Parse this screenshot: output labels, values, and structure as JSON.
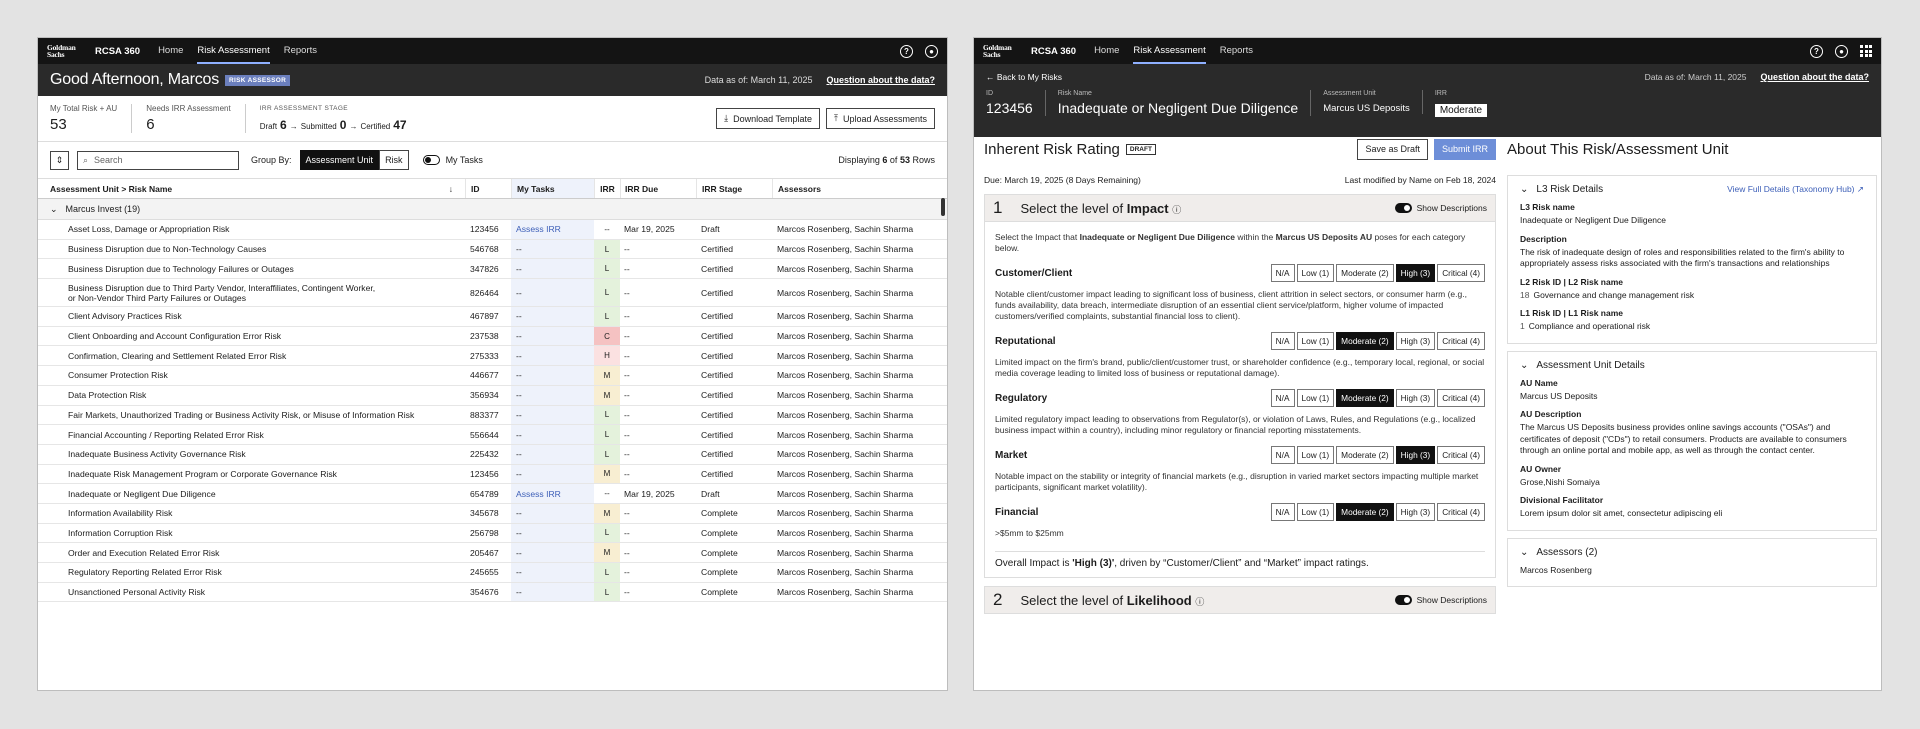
{
  "common": {
    "logo_line1": "Goldman",
    "logo_line2": "Sachs",
    "app_name": "RCSA 360",
    "nav": [
      "Home",
      "Risk Assessment",
      "Reports"
    ],
    "data_as_of": "Data as of: March 11, 2025",
    "question_link": "Question about the data?"
  },
  "dashboard": {
    "greeting": "Good Afternoon, Marcos",
    "role_badge": "RISK ASSESSOR",
    "stats": [
      {
        "label": "My Total Risk + AU",
        "value": "53"
      },
      {
        "label": "Needs IRR Assessment",
        "value": "6"
      }
    ],
    "stage": {
      "label": "IRR ASSESSMENT STAGE",
      "draft_label": "Draft",
      "draft": "6",
      "submitted_label": "Submitted",
      "submitted": "0",
      "certified_label": "Certified",
      "certified": "47"
    },
    "download_btn": "Download Template",
    "upload_btn": "Upload Assessments",
    "search_placeholder": "Search",
    "group_by_label": "Group By:",
    "group_by_options": [
      "Assessment Unit",
      "Risk"
    ],
    "my_tasks_label": "My Tasks",
    "displaying_prefix": "Displaying",
    "displaying_count": "6",
    "displaying_mid": "of",
    "displaying_total": "53",
    "displaying_suffix": "Rows",
    "columns": [
      "Assessment Unit > Risk Name",
      "ID",
      "My Tasks",
      "IRR",
      "IRR Due",
      "IRR Stage",
      "Assessors"
    ],
    "group_name": "Marcus Invest (19)",
    "rows": [
      {
        "name": "Asset Loss, Damage or Appropriation Risk",
        "id": "123456",
        "task": "Assess IRR",
        "irr": "--",
        "due": "Mar 19, 2025",
        "stage": "Draft",
        "assessors": "Marcos Rosenberg, Sachin Sharma"
      },
      {
        "name": "Business Disruption due to Non-Technology Causes",
        "id": "546768",
        "task": "--",
        "irr": "L",
        "due": "--",
        "stage": "Certified",
        "assessors": "Marcos Rosenberg, Sachin Sharma"
      },
      {
        "name": "Business Disruption due to Technology Failures or Outages",
        "id": "347826",
        "task": "--",
        "irr": "L",
        "due": "--",
        "stage": "Certified",
        "assessors": "Marcos Rosenberg, Sachin Sharma"
      },
      {
        "name": "Business Disruption due to Third Party Vendor, Interaffiliates, Contingent Worker,",
        "name2": "or Non-Vendor Third Party Failures or Outages",
        "id": "826464",
        "task": "--",
        "irr": "L",
        "due": "--",
        "stage": "Certified",
        "assessors": "Marcos Rosenberg, Sachin Sharma"
      },
      {
        "name": "Client Advisory Practices Risk",
        "id": "467897",
        "task": "--",
        "irr": "L",
        "due": "--",
        "stage": "Certified",
        "assessors": "Marcos Rosenberg, Sachin Sharma"
      },
      {
        "name": "Client Onboarding and Account Configuration Error Risk",
        "id": "237538",
        "task": "--",
        "irr": "C",
        "due": "--",
        "stage": "Certified",
        "assessors": "Marcos Rosenberg, Sachin Sharma"
      },
      {
        "name": "Confirmation, Clearing and Settlement Related Error Risk",
        "id": "275333",
        "task": "--",
        "irr": "H",
        "due": "--",
        "stage": "Certified",
        "assessors": "Marcos Rosenberg, Sachin Sharma"
      },
      {
        "name": "Consumer Protection Risk",
        "id": "446677",
        "task": "--",
        "irr": "M",
        "due": "--",
        "stage": "Certified",
        "assessors": "Marcos Rosenberg, Sachin Sharma"
      },
      {
        "name": "Data Protection Risk",
        "id": "356934",
        "task": "--",
        "irr": "M",
        "due": "--",
        "stage": "Certified",
        "assessors": "Marcos Rosenberg, Sachin Sharma"
      },
      {
        "name": "Fair Markets, Unauthorized Trading or Business Activity Risk, or Misuse of Information Risk",
        "id": "883377",
        "task": "--",
        "irr": "L",
        "due": "--",
        "stage": "Certified",
        "assessors": "Marcos Rosenberg, Sachin Sharma"
      },
      {
        "name": "Financial Accounting / Reporting Related Error Risk",
        "id": "556644",
        "task": "--",
        "irr": "L",
        "due": "--",
        "stage": "Certified",
        "assessors": "Marcos Rosenberg, Sachin Sharma"
      },
      {
        "name": "Inadequate Business Activity Governance Risk",
        "id": "225432",
        "task": "--",
        "irr": "L",
        "due": "--",
        "stage": "Certified",
        "assessors": "Marcos Rosenberg, Sachin Sharma"
      },
      {
        "name": "Inadequate Risk Management Program or Corporate Governance Risk",
        "id": "123456",
        "task": "--",
        "irr": "M",
        "due": "--",
        "stage": "Certified",
        "assessors": "Marcos Rosenberg, Sachin Sharma"
      },
      {
        "name": "Inadequate or Negligent Due Diligence",
        "id": "654789",
        "task": "Assess IRR",
        "irr": "--",
        "due": "Mar 19, 2025",
        "stage": "Draft",
        "assessors": "Marcos Rosenberg, Sachin Sharma"
      },
      {
        "name": "Information Availability Risk",
        "id": "345678",
        "task": "--",
        "irr": "M",
        "due": "--",
        "stage": "Complete",
        "assessors": "Marcos Rosenberg, Sachin Sharma"
      },
      {
        "name": "Information Corruption Risk",
        "id": "256798",
        "task": "--",
        "irr": "L",
        "due": "--",
        "stage": "Complete",
        "assessors": "Marcos Rosenberg, Sachin Sharma"
      },
      {
        "name": "Order and Execution Related Error Risk",
        "id": "205467",
        "task": "--",
        "irr": "M",
        "due": "--",
        "stage": "Complete",
        "assessors": "Marcos Rosenberg, Sachin Sharma"
      },
      {
        "name": "Regulatory Reporting Related Error Risk",
        "id": "245655",
        "task": "--",
        "irr": "L",
        "due": "--",
        "stage": "Complete",
        "assessors": "Marcos Rosenberg, Sachin Sharma"
      },
      {
        "name": "Unsanctioned Personal Activity Risk",
        "id": "354676",
        "task": "--",
        "irr": "L",
        "due": "--",
        "stage": "Complete",
        "assessors": "Marcos Rosenberg, Sachin Sharma"
      }
    ]
  },
  "detail": {
    "back_label": "Back to My Risks",
    "meta": {
      "id_label": "ID",
      "id": "123456",
      "risk_label": "Risk Name",
      "risk": "Inadequate or Negligent Due Diligence",
      "au_label": "Assessment Unit",
      "au": "Marcus US Deposits",
      "irr_label": "IRR",
      "irr": "Moderate"
    },
    "title": "Inherent Risk Rating",
    "draft_badge": "DRAFT",
    "save_btn": "Save as Draft",
    "submit_btn": "Submit IRR",
    "due": "Due: March 19, 2025 (8 Days Remaining)",
    "modified": "Last modified by Name on Feb 18, 2024",
    "step1": {
      "num": "1",
      "prefix": "Select the level of",
      "bold": "Impact"
    },
    "show_desc": "Show Descriptions",
    "intro_a": "Select the Impact that",
    "intro_b": "Inadequate or Negligent Due Diligence",
    "intro_c": "within the",
    "intro_d": "Marcus US Deposits AU",
    "intro_e": "poses for each category below.",
    "options": [
      "N/A",
      "Low (1)",
      "Moderate (2)",
      "High (3)",
      "Critical (4)"
    ],
    "categories": [
      {
        "name": "Customer/Client",
        "selected": 3,
        "desc": "Notable client/customer impact leading to significant loss of business, client attrition in select sectors, or consumer harm (e.g., funds availability, data breach, intermediate disruption of an essential client service/platform, higher volume of impacted customers/verified complaints, substantial financial loss to client)."
      },
      {
        "name": "Reputational",
        "selected": 2,
        "desc": "Limited impact on the firm's brand, public/client/customer trust, or shareholder confidence (e.g., temporary local, regional, or social media coverage leading to limited loss of business or reputational damage)."
      },
      {
        "name": "Regulatory",
        "selected": 2,
        "desc": "Limited regulatory impact leading to observations from Regulator(s), or violation of Laws, Rules, and Regulations (e.g., localized business impact within a country), including minor regulatory or financial reporting misstatements."
      },
      {
        "name": "Market",
        "selected": 3,
        "desc": "Notable impact on the stability or integrity of financial markets (e.g., disruption in varied market sectors impacting multiple market participants, significant market volatility)."
      },
      {
        "name": "Financial",
        "selected": 2,
        "desc": ">$5mm to $25mm"
      }
    ],
    "overall_a": "Overall Impact is",
    "overall_b": "'High (3)'",
    "overall_c": ", driven by “Customer/Client” and “Market” impact ratings.",
    "step2": {
      "num": "2",
      "prefix": "Select the level of",
      "bold": "Likelihood"
    },
    "about_title": "About This Risk/Assessment Unit",
    "l3": {
      "title": "L3 Risk Details",
      "link": "View Full Details (Taxonomy Hub)",
      "name_label": "L3 Risk name",
      "name": "Inadequate or Negligent Due Diligence",
      "desc_label": "Description",
      "desc": "The risk of inadequate design of roles and responsibilities related to the firm's ability to appropriately assess risks associated with the firm's transactions and relationships",
      "l2_label": "L2 Risk ID | L2 Risk name",
      "l2_id": "18",
      "l2_name": "Governance and change management risk",
      "l1_label": "L1 Risk ID | L1 Risk name",
      "l1_id": "1",
      "l1_name": "Compliance and operational risk"
    },
    "au_details": {
      "title": "Assessment Unit Details",
      "name_label": "AU Name",
      "name": "Marcus US Deposits",
      "desc_label": "AU Description",
      "desc": "The Marcus US Deposits business provides online savings accounts (\"OSAs\") and certificates of deposit (\"CDs\") to retail consumers. Products are available to consumers through an online portal and mobile app, as well as through the contact center.",
      "owner_label": "AU Owner",
      "owner": "Grose,Nishi Somaiya",
      "facilitator_label": "Divisional Facilitator",
      "facilitator": "Lorem ipsum dolor sit amet, consectetur adipiscing eli"
    },
    "assessors": {
      "title": "Assessors (2)",
      "first": "Marcos Rosenberg"
    }
  },
  "colors": {
    "accent": "#6d8ed8",
    "nav_bg": "#141414",
    "irr_low": "#e4f2dc",
    "irr_mod": "#f8eed2",
    "irr_high": "#fbe1e1",
    "irr_crit": "#f5c2c2"
  }
}
